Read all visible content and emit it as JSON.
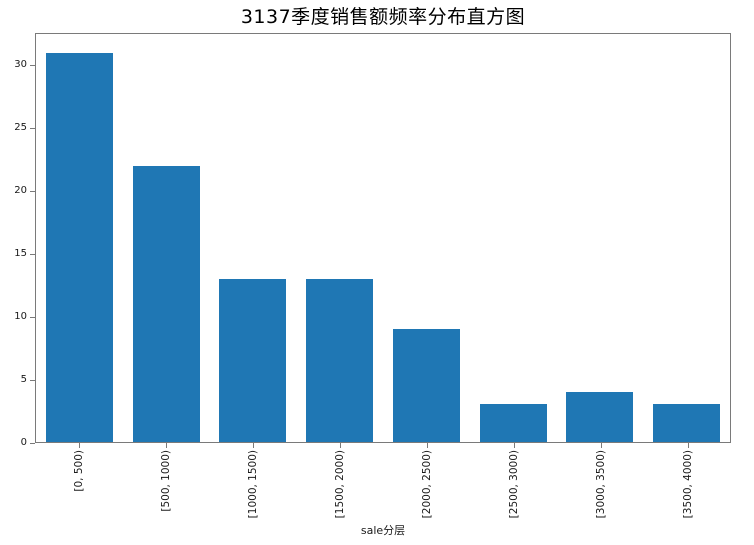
{
  "chart_data": {
    "type": "bar",
    "title": "3137季度销售额频率分布直方图",
    "xlabel": "sale分层",
    "ylabel": "",
    "categories": [
      "[0, 500)",
      "[500, 1000)",
      "[1000, 1500)",
      "[1500, 2000)",
      "[2000, 2500)",
      "[2500, 3000)",
      "[3000, 3500)",
      "[3500, 4000)"
    ],
    "values": [
      31,
      22,
      13,
      13,
      9,
      3,
      4,
      3
    ],
    "yticks": [
      0,
      5,
      10,
      15,
      20,
      25,
      30
    ],
    "ylim": [
      0,
      32.55
    ],
    "bar_color": "#1f77b4",
    "grid": false,
    "legend": null,
    "x_tick_rotation_deg": 90
  }
}
